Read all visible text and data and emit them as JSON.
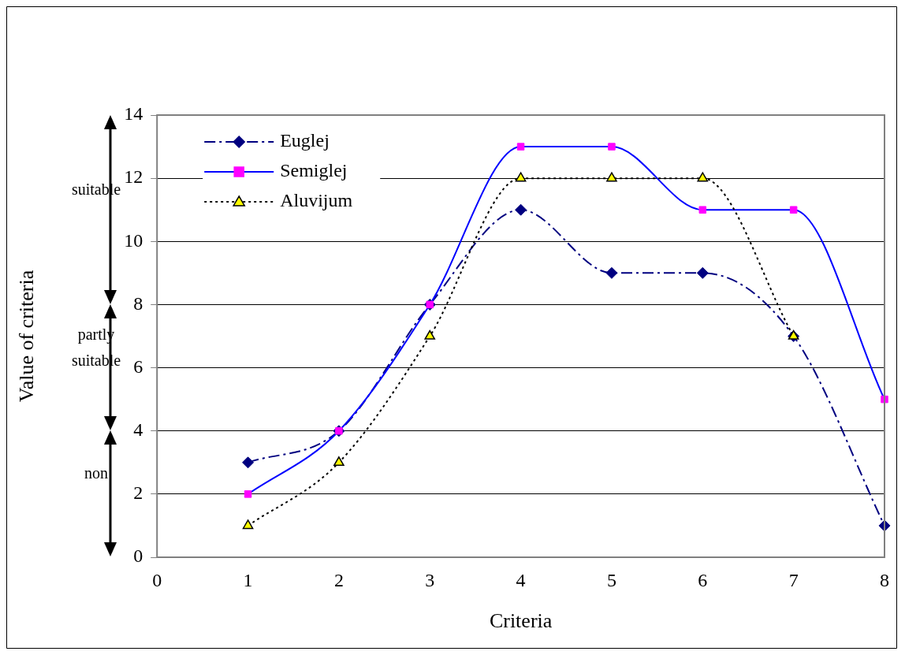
{
  "chart_data": {
    "type": "line",
    "xlabel": "Criteria",
    "ylabel": "Value of criteria",
    "x": [
      1,
      2,
      3,
      4,
      5,
      6,
      7,
      8
    ],
    "xlim": [
      0,
      8
    ],
    "xticks": [
      0,
      1,
      2,
      3,
      4,
      5,
      6,
      7,
      8
    ],
    "ylim": [
      0,
      14
    ],
    "yticks": [
      0,
      2,
      4,
      6,
      8,
      10,
      12,
      14
    ],
    "grid": "y",
    "legend": "top left",
    "series": [
      {
        "name": "Euglej",
        "color": "#000080",
        "marker": "diamond",
        "line_style": "dashed",
        "values": [
          3,
          4,
          8,
          11,
          9,
          9,
          7,
          1
        ]
      },
      {
        "name": "Semiglej",
        "color": "#0000ff",
        "colors": [
          "#ff00ff",
          "#ff00ff",
          "#ff00ff",
          "#ff00ff",
          "#ff00ff",
          "#ff00ff",
          "#ff00ff",
          "#ff00ff"
        ],
        "marker": "square",
        "line_style": "solid",
        "values": [
          2,
          4,
          8,
          13,
          13,
          11,
          11,
          5
        ]
      },
      {
        "name": "Aluvijum",
        "color": "#000000",
        "colors": [
          "#ffff00",
          "#ffff00",
          "#ffff00",
          "#ffff00",
          "#ffff00",
          "#ffff00",
          "#ffff00",
          "#ffff00"
        ],
        "marker": "triangle",
        "line_style": "dotted",
        "values": [
          1,
          3,
          7,
          12,
          12,
          12,
          7,
          null
        ]
      }
    ],
    "annotations": [
      "suitable",
      "partly suitable",
      "non"
    ]
  }
}
